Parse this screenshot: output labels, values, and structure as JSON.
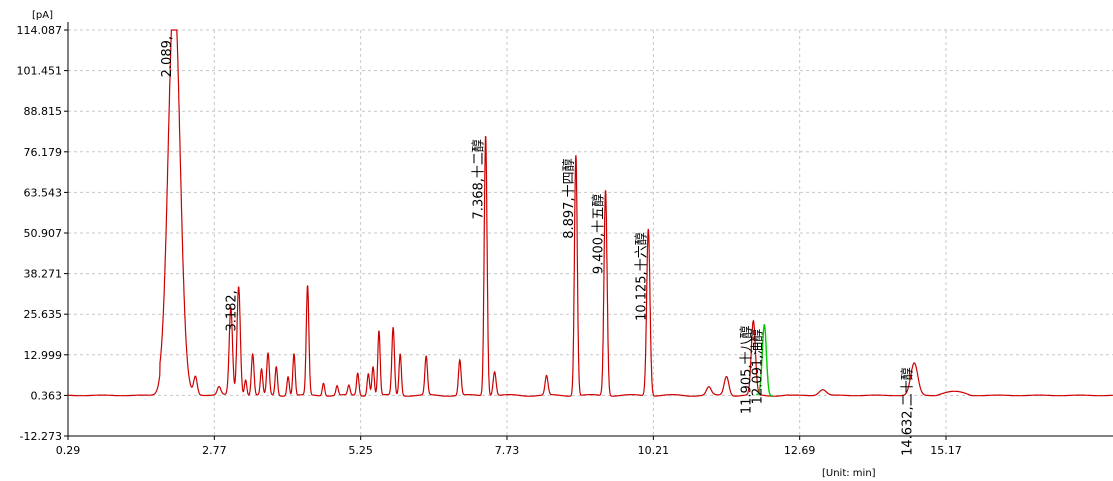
{
  "chart_data": {
    "type": "line",
    "title": "",
    "ylabel": "[pA]",
    "xlabel": "[Unit: min]",
    "xlim": [
      0.29,
      18.0
    ],
    "ylim": [
      -12.273,
      114.087
    ],
    "y_ticks": [
      "114.087",
      "101.451",
      "88.815",
      "76.179",
      "63.543",
      "50.907",
      "38.271",
      "25.635",
      "12.999",
      "0.363",
      "-12.273"
    ],
    "x_ticks": [
      "0.29",
      "2.77",
      "5.25",
      "7.73",
      "10.21",
      "12.69",
      "15.17"
    ],
    "grid": true,
    "baseline": 0.363,
    "colors": {
      "trace": "#cc0000",
      "highlight": "#00cc00",
      "axis": "#000000"
    },
    "peaks": [
      {
        "t": 2.089,
        "h": 125,
        "w": 0.1,
        "label": "2.089,"
      },
      {
        "t": 2.45,
        "h": 5.5,
        "w": 0.03,
        "label": ""
      },
      {
        "t": 2.85,
        "h": 2.5,
        "w": 0.03,
        "label": ""
      },
      {
        "t": 3.05,
        "h": 27,
        "w": 0.028,
        "label": ""
      },
      {
        "t": 3.182,
        "h": 34,
        "w": 0.028,
        "label": "3.182,"
      },
      {
        "t": 3.3,
        "h": 5,
        "w": 0.02,
        "label": ""
      },
      {
        "t": 3.42,
        "h": 13,
        "w": 0.022,
        "label": ""
      },
      {
        "t": 3.57,
        "h": 8,
        "w": 0.02,
        "label": ""
      },
      {
        "t": 3.68,
        "h": 13,
        "w": 0.022,
        "label": ""
      },
      {
        "t": 3.82,
        "h": 9,
        "w": 0.02,
        "label": ""
      },
      {
        "t": 4.02,
        "h": 6,
        "w": 0.02,
        "label": ""
      },
      {
        "t": 4.12,
        "h": 13,
        "w": 0.02,
        "label": ""
      },
      {
        "t": 4.35,
        "h": 34,
        "w": 0.022,
        "label": ""
      },
      {
        "t": 4.62,
        "h": 4,
        "w": 0.02,
        "label": ""
      },
      {
        "t": 4.85,
        "h": 3,
        "w": 0.02,
        "label": ""
      },
      {
        "t": 5.05,
        "h": 3,
        "w": 0.02,
        "label": ""
      },
      {
        "t": 5.2,
        "h": 7,
        "w": 0.02,
        "label": ""
      },
      {
        "t": 5.38,
        "h": 7,
        "w": 0.02,
        "label": ""
      },
      {
        "t": 5.46,
        "h": 9,
        "w": 0.02,
        "label": ""
      },
      {
        "t": 5.56,
        "h": 20,
        "w": 0.02,
        "label": ""
      },
      {
        "t": 5.8,
        "h": 21,
        "w": 0.022,
        "label": ""
      },
      {
        "t": 5.92,
        "h": 13,
        "w": 0.02,
        "label": ""
      },
      {
        "t": 6.36,
        "h": 12,
        "w": 0.022,
        "label": ""
      },
      {
        "t": 6.93,
        "h": 11,
        "w": 0.022,
        "label": ""
      },
      {
        "t": 7.368,
        "h": 81,
        "w": 0.024,
        "label": "7.368,十二醇"
      },
      {
        "t": 7.52,
        "h": 7.5,
        "w": 0.025,
        "label": ""
      },
      {
        "t": 8.4,
        "h": 6,
        "w": 0.025,
        "label": ""
      },
      {
        "t": 8.897,
        "h": 75,
        "w": 0.024,
        "label": "8.897,十四醇"
      },
      {
        "t": 9.4,
        "h": 64,
        "w": 0.026,
        "label": "9.400,十五醇"
      },
      {
        "t": 10.125,
        "h": 52,
        "w": 0.028,
        "label": "10.125,十六醇"
      },
      {
        "t": 11.15,
        "h": 2.5,
        "w": 0.04,
        "label": ""
      },
      {
        "t": 11.45,
        "h": 6,
        "w": 0.04,
        "label": ""
      },
      {
        "t": 11.905,
        "h": 23,
        "w": 0.035,
        "label": "11.905,十八醇"
      },
      {
        "t": 12.091,
        "h": 22,
        "w": 0.035,
        "label": "12.091,油醇",
        "highlight": true
      },
      {
        "t": 13.08,
        "h": 1.8,
        "w": 0.06,
        "label": ""
      },
      {
        "t": 14.632,
        "h": 10,
        "w": 0.06,
        "label": "14.632,二十醇"
      }
    ]
  }
}
